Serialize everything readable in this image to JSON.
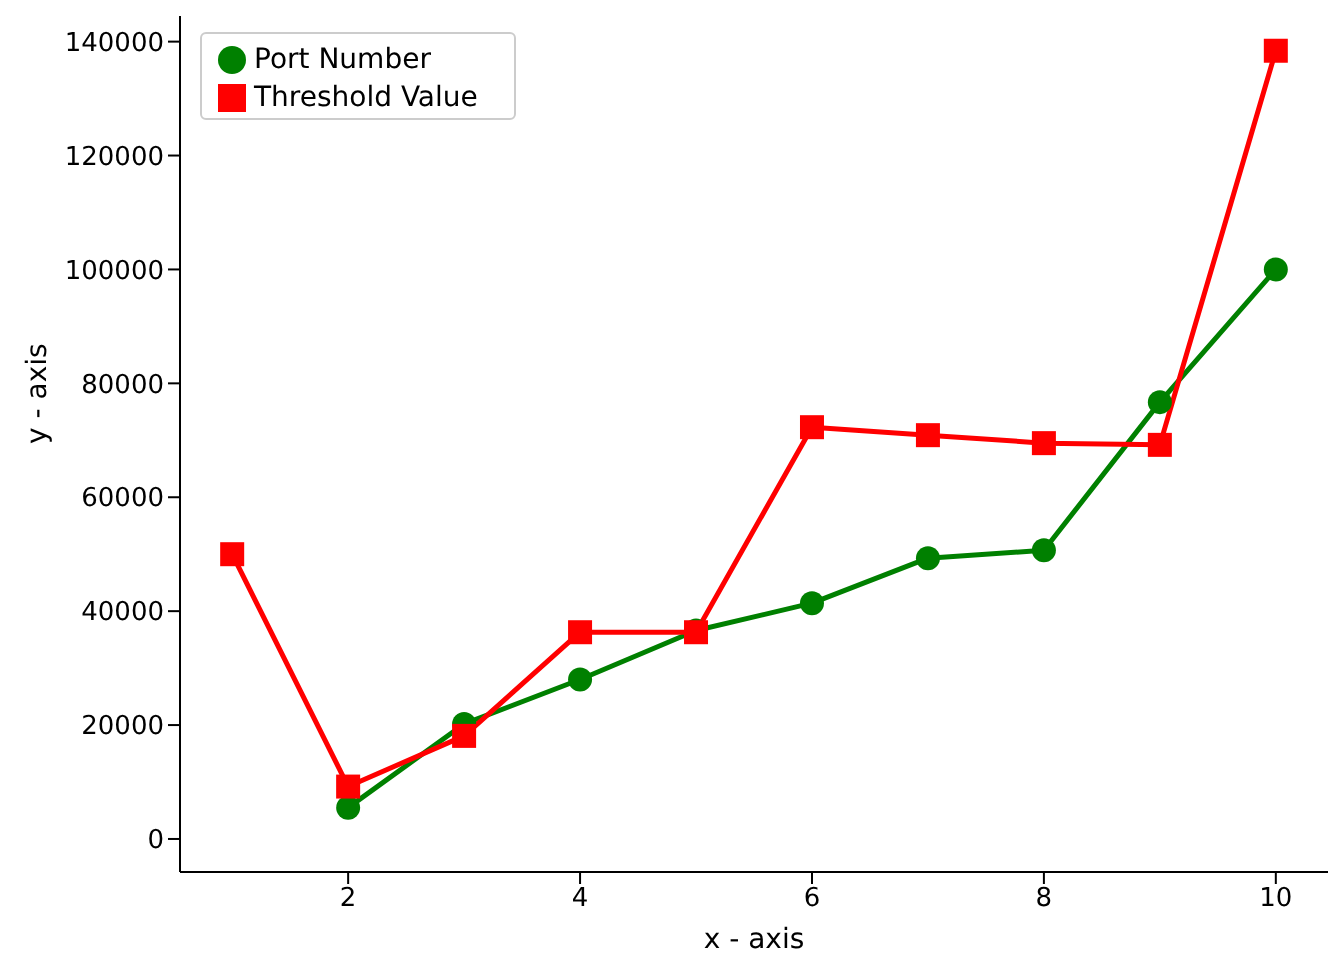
{
  "chart_data": {
    "type": "line",
    "xlabel": "x - axis",
    "ylabel": "y - axis",
    "x": [
      1,
      2,
      3,
      4,
      5,
      6,
      7,
      8,
      9,
      10
    ],
    "series": [
      {
        "name": "Port Number",
        "color": "#008000",
        "marker": "circle",
        "values": [
          null,
          5500,
          20200,
          28000,
          36600,
          41400,
          49300,
          50700,
          76700,
          100000
        ]
      },
      {
        "name": "Threshold Value",
        "color": "#ff0000",
        "marker": "square",
        "values": [
          50000,
          9200,
          18100,
          36300,
          36300,
          72300,
          70900,
          69500,
          69200,
          138400
        ]
      }
    ],
    "xlim": [
      0.55,
      10.45
    ],
    "xticks": [
      2,
      4,
      6,
      8,
      10
    ],
    "ylim": [
      -5800,
      144500
    ],
    "yticks": [
      0,
      20000,
      40000,
      60000,
      80000,
      100000,
      120000,
      140000
    ],
    "grid": false,
    "legend": "top left",
    "line_style": "solid"
  }
}
